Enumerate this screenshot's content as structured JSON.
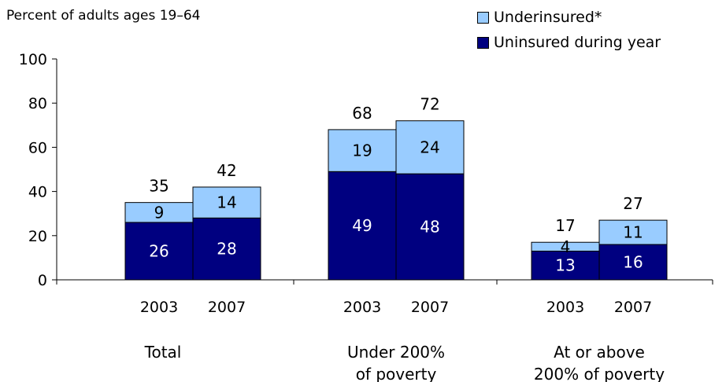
{
  "chart_data": {
    "type": "bar",
    "stacked": true,
    "y_axis_title": "Percent of adults ages 19–64",
    "ylim": [
      0,
      100
    ],
    "yticks": [
      0,
      20,
      40,
      60,
      80,
      100
    ],
    "groups": [
      {
        "label_lines": [
          "Total"
        ],
        "years": [
          "2003",
          "2007"
        ]
      },
      {
        "label_lines": [
          "Under 200%",
          "of poverty"
        ],
        "years": [
          "2003",
          "2007"
        ]
      },
      {
        "label_lines": [
          "At or above",
          "200% of poverty"
        ],
        "years": [
          "2003",
          "2007"
        ]
      }
    ],
    "series": [
      {
        "name": "Uninsured during year",
        "color": "#000080",
        "values": [
          [
            26,
            28
          ],
          [
            49,
            48
          ],
          [
            13,
            16
          ]
        ]
      },
      {
        "name": "Underinsured*",
        "color": "#99ccff",
        "values": [
          [
            9,
            14
          ],
          [
            19,
            24
          ],
          [
            4,
            11
          ]
        ]
      }
    ],
    "totals": [
      [
        35,
        42
      ],
      [
        68,
        72
      ],
      [
        17,
        27
      ]
    ],
    "legend": {
      "position": "top-right",
      "entries": [
        "Underinsured*",
        "Uninsured during year"
      ]
    },
    "grid": false
  }
}
